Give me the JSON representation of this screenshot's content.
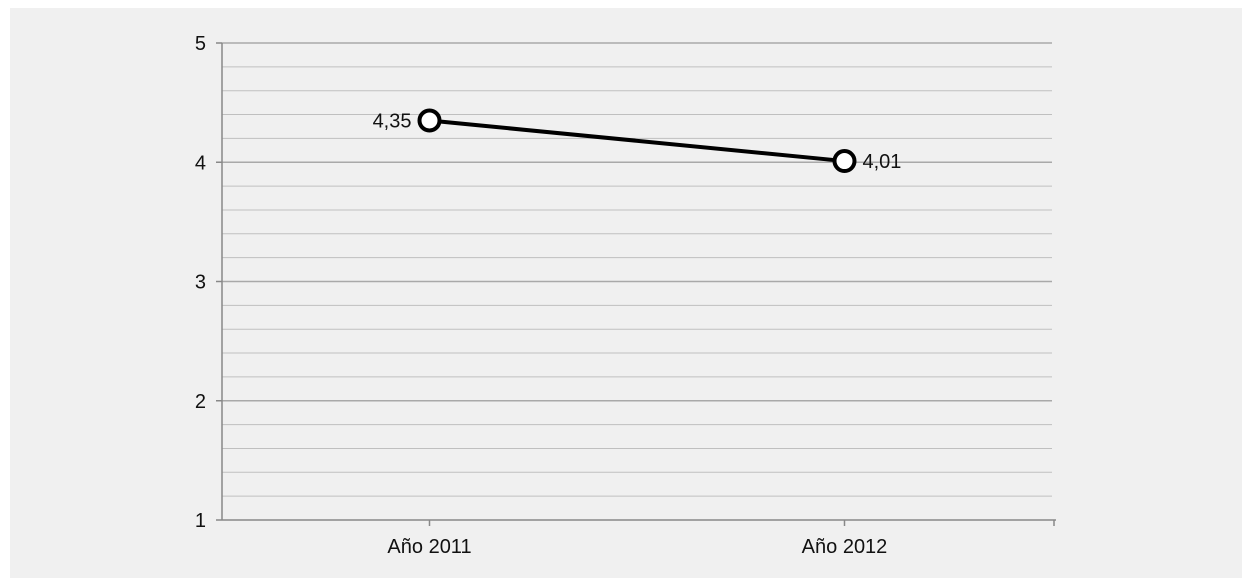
{
  "chart_data": {
    "type": "line",
    "categories": [
      "Año 2011",
      "Año 2012"
    ],
    "series": [
      {
        "values": [
          4.35,
          4.01
        ],
        "data_labels": [
          "4,35",
          "4,01"
        ]
      }
    ],
    "ylim": [
      1,
      5
    ],
    "y_ticks": [
      1,
      2,
      3,
      4,
      5
    ],
    "y_tick_labels": [
      "1",
      "2",
      "3",
      "4",
      "5"
    ],
    "minor_gridlines_per_unit": 5,
    "grid": true,
    "legend": "none",
    "title": "",
    "xlabel": "",
    "ylabel": "",
    "colors": {
      "background": "#f0f0f0",
      "line": "#000000",
      "marker_fill": "#ffffff",
      "grid": "#bfbfbf",
      "axis": "#888888"
    }
  }
}
